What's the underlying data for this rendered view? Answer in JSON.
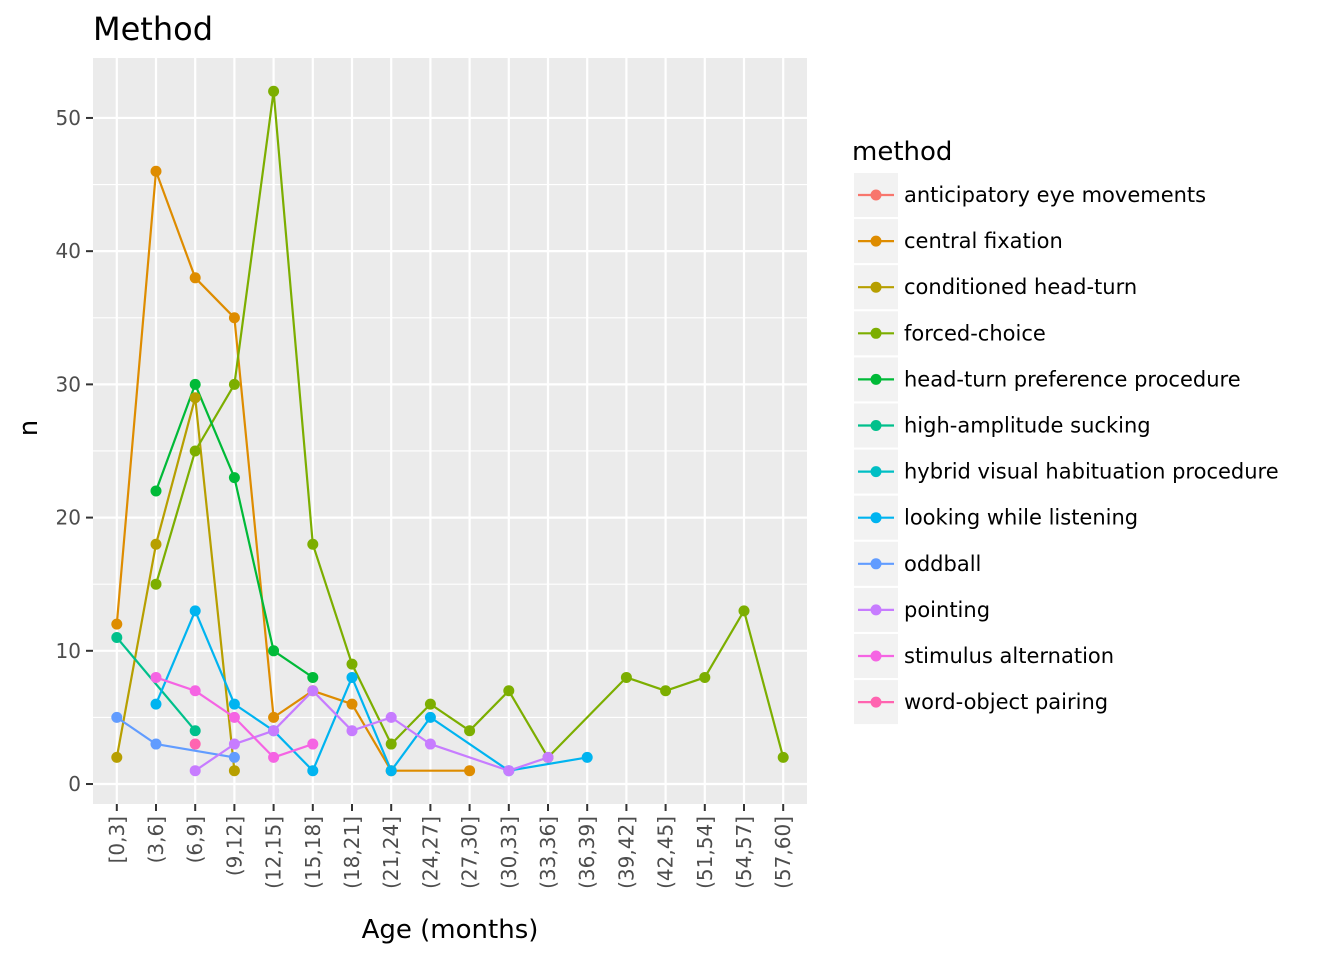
{
  "chart_data": {
    "type": "line",
    "title": "Method",
    "xlabel": "Age (months)",
    "ylabel": "n",
    "categories": [
      "[0,3]",
      "(3,6]",
      "(6,9]",
      "(9,12]",
      "(12,15]",
      "(15,18]",
      "(18,21]",
      "(21,24]",
      "(24,27]",
      "(27,30]",
      "(30,33]",
      "(33,36]",
      "(36,39]",
      "(39,42]",
      "(42,45]",
      "(51,54]",
      "(54,57]",
      "(57,60]"
    ],
    "ylim": [
      -1.5,
      54.5
    ],
    "yticks": [
      0,
      10,
      20,
      30,
      40,
      50
    ],
    "grid": true,
    "legend_title": "method",
    "legend_position": "right",
    "series": [
      {
        "name": "anticipatory eye movements",
        "color": "#F8766D",
        "values": [
          null,
          null,
          null,
          null,
          null,
          null,
          null,
          null,
          null,
          null,
          null,
          null,
          null,
          null,
          null,
          null,
          null,
          null
        ]
      },
      {
        "name": "central fixation",
        "color": "#DE8C00",
        "values": [
          12,
          46,
          38,
          35,
          5,
          7,
          6,
          1,
          null,
          1,
          null,
          null,
          null,
          null,
          null,
          null,
          null,
          null
        ]
      },
      {
        "name": "conditioned head-turn",
        "color": "#B79F00",
        "values": [
          2,
          18,
          29,
          1,
          null,
          null,
          null,
          null,
          null,
          null,
          null,
          null,
          null,
          null,
          null,
          null,
          null,
          null
        ]
      },
      {
        "name": "forced-choice",
        "color": "#7CAE00",
        "values": [
          null,
          15,
          25,
          30,
          52,
          18,
          9,
          3,
          6,
          4,
          7,
          2,
          null,
          8,
          7,
          8,
          13,
          2
        ]
      },
      {
        "name": "head-turn preference procedure",
        "color": "#00BA38",
        "values": [
          null,
          22,
          30,
          23,
          10,
          8,
          null,
          null,
          null,
          null,
          null,
          null,
          null,
          null,
          null,
          null,
          null,
          null
        ]
      },
      {
        "name": "high-amplitude sucking",
        "color": "#00C08B",
        "values": [
          11,
          null,
          4,
          null,
          null,
          null,
          null,
          null,
          null,
          null,
          null,
          null,
          null,
          null,
          null,
          null,
          null,
          null
        ]
      },
      {
        "name": "hybrid visual habituation procedure",
        "color": "#00BFC4",
        "values": [
          null,
          null,
          null,
          null,
          null,
          null,
          null,
          null,
          null,
          null,
          null,
          null,
          null,
          null,
          null,
          null,
          null,
          null
        ]
      },
      {
        "name": "looking while listening",
        "color": "#00B4F0",
        "values": [
          null,
          6,
          13,
          6,
          4,
          1,
          8,
          1,
          5,
          null,
          1,
          null,
          2,
          null,
          null,
          null,
          null,
          null
        ]
      },
      {
        "name": "oddball",
        "color": "#619CFF",
        "values": [
          5,
          3,
          null,
          2,
          null,
          null,
          null,
          null,
          null,
          null,
          null,
          null,
          null,
          null,
          null,
          null,
          null,
          null
        ]
      },
      {
        "name": "pointing",
        "color": "#C77CFF",
        "values": [
          null,
          null,
          1,
          3,
          4,
          7,
          4,
          5,
          3,
          null,
          1,
          2,
          null,
          null,
          null,
          null,
          null,
          null
        ]
      },
      {
        "name": "stimulus alternation",
        "color": "#F564E3",
        "values": [
          null,
          8,
          7,
          5,
          2,
          3,
          null,
          null,
          null,
          null,
          null,
          null,
          null,
          null,
          null,
          null,
          null,
          null
        ]
      },
      {
        "name": "word-object pairing",
        "color": "#FF64B0",
        "values": [
          null,
          null,
          3,
          null,
          null,
          null,
          null,
          null,
          null,
          null,
          null,
          null,
          null,
          null,
          null,
          null,
          null,
          null
        ]
      }
    ]
  }
}
